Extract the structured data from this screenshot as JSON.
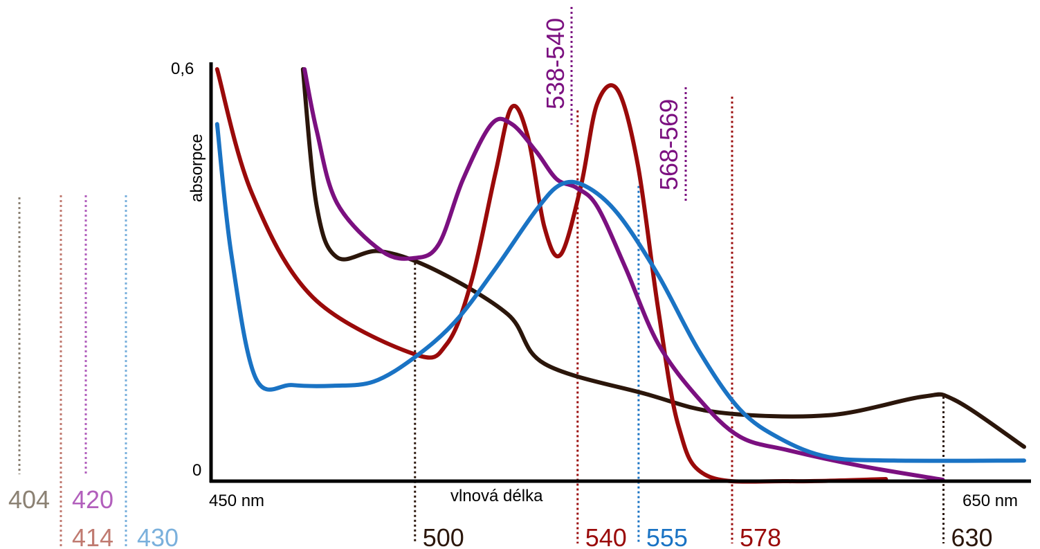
{
  "chart_data": {
    "type": "line",
    "ylabel": "absorpce",
    "xlabel": "vlnová délka",
    "x_start_label": "450 nm",
    "x_end_label": "650 nm",
    "y_top_label": "0,6",
    "y_bottom_label": "0",
    "xlim": [
      450,
      650
    ],
    "ylim": [
      0,
      0.6
    ],
    "grid": false,
    "colors": {
      "brown": "#2b160b",
      "red": "#9a0a0a",
      "purple": "#7b1080",
      "blue": "#1a73c4",
      "soret_grey": "#8b8173",
      "soret_red": "#c07a70",
      "soret_purple": "#b25fbc",
      "soret_blue": "#7ab0dc"
    },
    "series": [
      {
        "color": "brown",
        "points": [
          [
            472.6,
            0.6
          ],
          [
            476,
            0.4
          ],
          [
            481,
            0.326
          ],
          [
            491.5,
            0.335
          ],
          [
            505,
            0.308
          ],
          [
            523,
            0.243
          ],
          [
            532,
            0.171
          ],
          [
            557,
            0.127
          ],
          [
            575,
            0.1
          ],
          [
            602,
            0.096
          ],
          [
            625,
            0.123
          ],
          [
            633,
            0.118
          ],
          [
            650,
            0.05
          ]
        ]
      },
      {
        "color": "red",
        "points": [
          [
            451.5,
            0.6
          ],
          [
            460,
            0.42
          ],
          [
            475,
            0.268
          ],
          [
            500,
            0.185
          ],
          [
            508,
            0.2
          ],
          [
            514,
            0.29
          ],
          [
            520,
            0.45
          ],
          [
            524,
            0.545
          ],
          [
            528,
            0.5
          ],
          [
            532,
            0.37
          ],
          [
            536,
            0.33
          ],
          [
            541,
            0.43
          ],
          [
            545,
            0.55
          ],
          [
            550,
            0.57
          ],
          [
            555,
            0.46
          ],
          [
            560,
            0.25
          ],
          [
            565,
            0.08
          ],
          [
            572,
            0.008
          ],
          [
            592,
            0
          ],
          [
            616,
            0.003
          ]
        ]
      },
      {
        "color": "purple",
        "points": [
          [
            473,
            0.6
          ],
          [
            476,
            0.51
          ],
          [
            481,
            0.405
          ],
          [
            492,
            0.335
          ],
          [
            500,
            0.325
          ],
          [
            506,
            0.345
          ],
          [
            512,
            0.44
          ],
          [
            519,
            0.52
          ],
          [
            524,
            0.52
          ],
          [
            530,
            0.48
          ],
          [
            535,
            0.44
          ],
          [
            540,
            0.427
          ],
          [
            545,
            0.4
          ],
          [
            552,
            0.31
          ],
          [
            560,
            0.2
          ],
          [
            570,
            0.12
          ],
          [
            580,
            0.065
          ],
          [
            592,
            0.045
          ],
          [
            610,
            0.022
          ],
          [
            630,
            0.002
          ]
        ]
      },
      {
        "color": "blue",
        "points": [
          [
            451.5,
            0.52
          ],
          [
            455,
            0.33
          ],
          [
            461,
            0.15
          ],
          [
            470,
            0.14
          ],
          [
            480,
            0.139
          ],
          [
            490,
            0.145
          ],
          [
            500,
            0.18
          ],
          [
            510,
            0.232
          ],
          [
            520,
            0.31
          ],
          [
            530,
            0.395
          ],
          [
            536,
            0.432
          ],
          [
            542,
            0.43
          ],
          [
            550,
            0.39
          ],
          [
            560,
            0.3
          ],
          [
            570,
            0.19
          ],
          [
            580,
            0.105
          ],
          [
            590,
            0.062
          ],
          [
            602,
            0.035
          ],
          [
            618,
            0.03
          ],
          [
            650,
            0.03
          ]
        ]
      }
    ],
    "peak_markers": [
      {
        "label": "500",
        "x": 500,
        "y": 0.325,
        "color": "brown"
      },
      {
        "label": "540",
        "x": 540,
        "y": 0.54,
        "color": "red"
      },
      {
        "label": "555",
        "x": 555,
        "y": 0.43,
        "color": "blue"
      },
      {
        "label": "578",
        "x": 578,
        "y": 0.56,
        "color": "red"
      },
      {
        "label": "630",
        "x": 630,
        "y": 0.123,
        "color": "brown"
      }
    ],
    "top_labels": [
      {
        "label": "538-540",
        "color": "purple"
      },
      {
        "label": "568-569",
        "color": "purple"
      }
    ],
    "soret_labels": [
      {
        "label": "404",
        "color": "soret_grey"
      },
      {
        "label": "414",
        "color": "soret_red"
      },
      {
        "label": "420",
        "color": "soret_purple"
      },
      {
        "label": "430",
        "color": "soret_blue"
      }
    ]
  }
}
